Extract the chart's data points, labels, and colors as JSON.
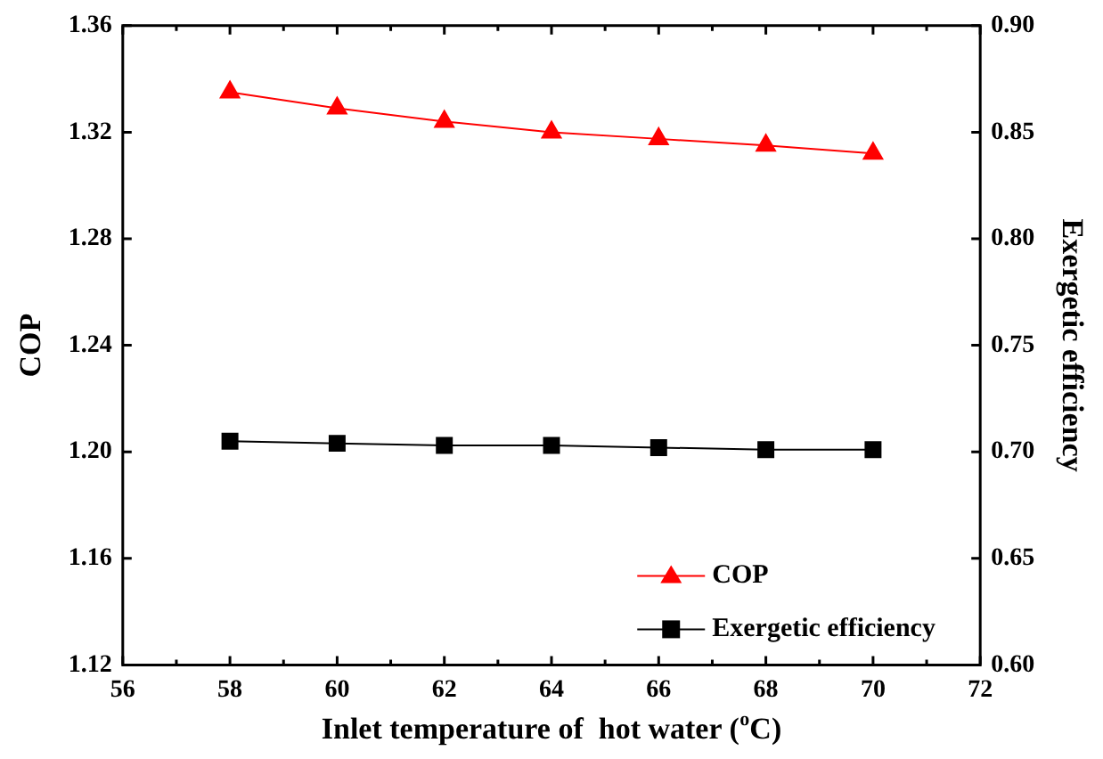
{
  "chart_data": {
    "type": "line",
    "xlabel": "Inlet temperature of  hot water ($^{o}$C)",
    "ylabel": "COP",
    "y2label": "Exergetic efficiency",
    "x": [
      58,
      60,
      62,
      64,
      66,
      68,
      70
    ],
    "series": [
      {
        "name": "COP",
        "color": "#ff0000",
        "marker": "triangle",
        "values": [
          1.335,
          1.329,
          1.324,
          1.32,
          1.3175,
          1.315,
          1.312
        ]
      },
      {
        "name": "Exergetic efficiency",
        "color": "#000000",
        "marker": "square",
        "axis": "y2",
        "values": [
          0.705,
          0.704,
          0.703,
          0.703,
          0.702,
          0.701,
          0.701
        ]
      }
    ],
    "xlim": [
      56,
      72
    ],
    "xticks": [
      56,
      58,
      60,
      62,
      64,
      66,
      68,
      70,
      72
    ],
    "ylim": [
      1.12,
      1.36
    ],
    "yticks": [
      {
        "value": 1.12,
        "label": "1.12"
      },
      {
        "value": 1.16,
        "label": "1.16"
      },
      {
        "value": 1.2,
        "label": "1.20"
      },
      {
        "value": 1.24,
        "label": "1.24"
      },
      {
        "value": 1.28,
        "label": "1.28"
      },
      {
        "value": 1.32,
        "label": "1.32"
      },
      {
        "value": 1.36,
        "label": "1.36"
      }
    ],
    "y2lim": [
      0.6,
      0.9
    ],
    "y2ticks": [
      {
        "value": 0.6,
        "label": "0.60"
      },
      {
        "value": 0.65,
        "label": "0.65"
      },
      {
        "value": 0.7,
        "label": "0.70"
      },
      {
        "value": 0.75,
        "label": "0.75"
      },
      {
        "value": 0.8,
        "label": "0.80"
      },
      {
        "value": 0.85,
        "label": "0.85"
      },
      {
        "value": 0.9,
        "label": "0.90"
      }
    ],
    "grid": false,
    "legend": "bottom right",
    "line_style": "solid"
  }
}
